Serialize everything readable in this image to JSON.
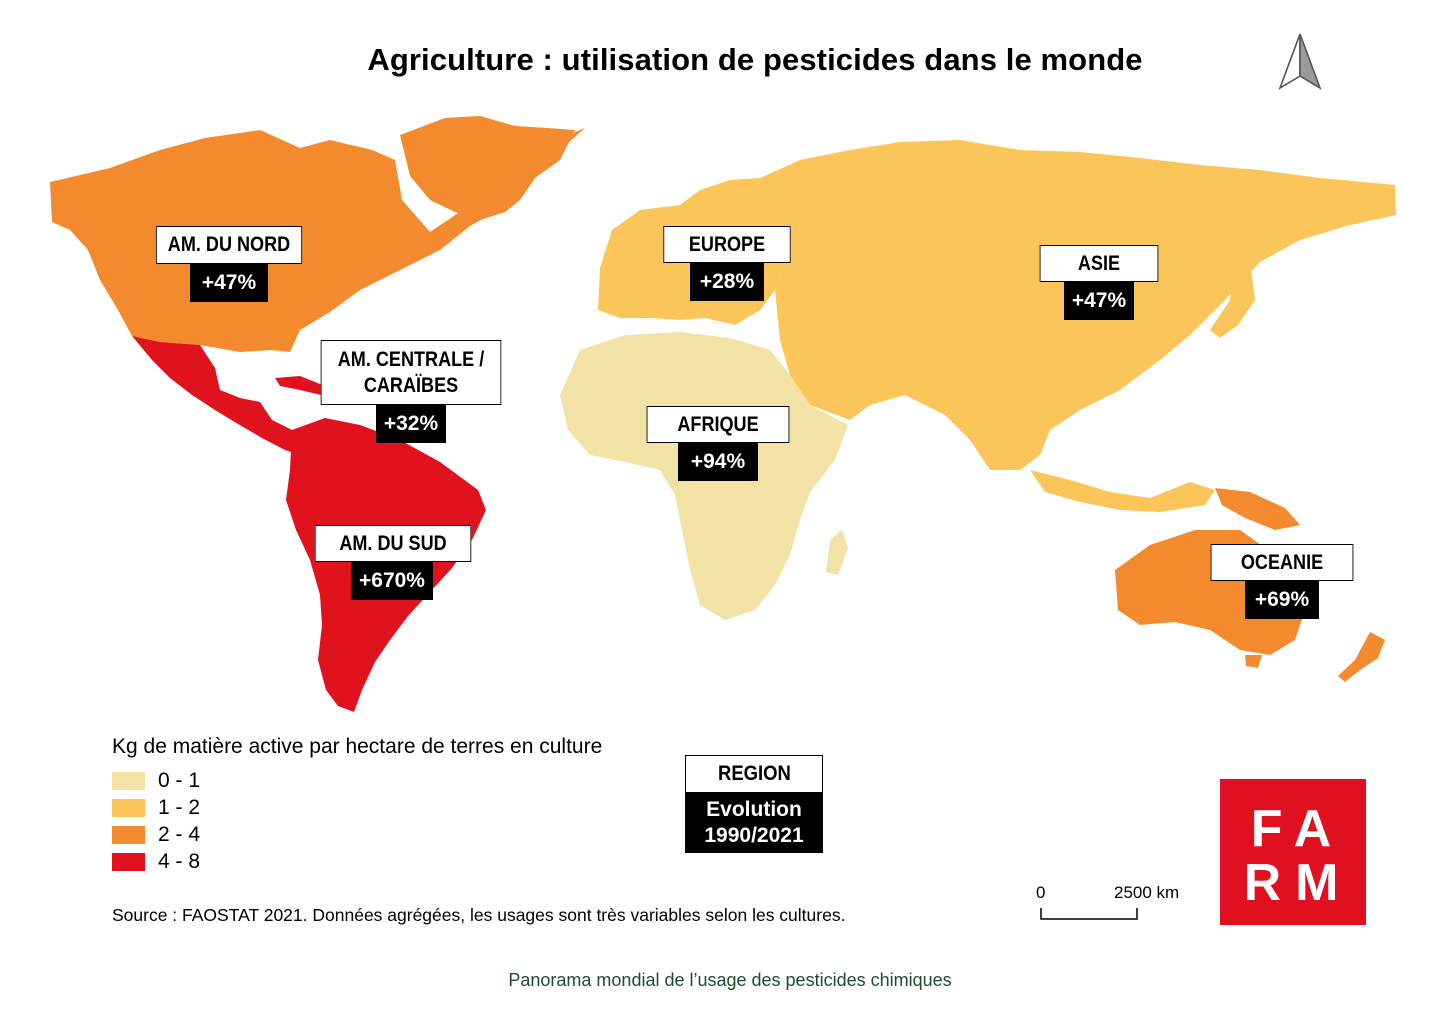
{
  "title": "Agriculture : utilisation de pesticides dans le monde",
  "colors": {
    "class_0_1": "#f2e2a6",
    "class_1_2": "#fcc55a",
    "class_2_4": "#f48a2e",
    "class_4_8": "#e0121e",
    "label_bg": "#000000",
    "logo_red": "#e01021",
    "footer_green": "#1d4d2e"
  },
  "regions": [
    {
      "name": "AM. DU NORD",
      "evolution": "+47%",
      "class": "2 - 4"
    },
    {
      "name_line1": "AM. CENTRALE /",
      "name_line2": "CARAÏBES",
      "evolution": "+32%",
      "class": "4 - 8"
    },
    {
      "name": "AM. DU SUD",
      "evolution": "+670%",
      "class": "4 - 8"
    },
    {
      "name": "EUROPE",
      "evolution": "+28%",
      "class": "1 - 2"
    },
    {
      "name": "AFRIQUE",
      "evolution": "+94%",
      "class": "0 - 1"
    },
    {
      "name": "ASIE",
      "evolution": "+47%",
      "class": "1 - 2"
    },
    {
      "name": "OCEANIE",
      "evolution": "+69%",
      "class": "2 - 4"
    }
  ],
  "legend": {
    "title": "Kg de matière active par hectare de terres en culture",
    "items": [
      {
        "label": "0 - 1",
        "color": "#f2e2a6"
      },
      {
        "label": "1 - 2",
        "color": "#fcc55a"
      },
      {
        "label": "2 - 4",
        "color": "#f48a2e"
      },
      {
        "label": "4 - 8",
        "color": "#e0121e"
      }
    ]
  },
  "key": {
    "region": "REGION",
    "evolution_line1": "Evolution",
    "evolution_line2": "1990/2021"
  },
  "source": "Source : FAOSTAT 2021. Données agrégées, les usages sont très variables selon les cultures.",
  "scale": {
    "zero": "0",
    "max": "2500  km"
  },
  "logo": {
    "line1": "FA",
    "line2": "RM"
  },
  "footer": "Panorama mondial de l’usage des pesticides chimiques"
}
